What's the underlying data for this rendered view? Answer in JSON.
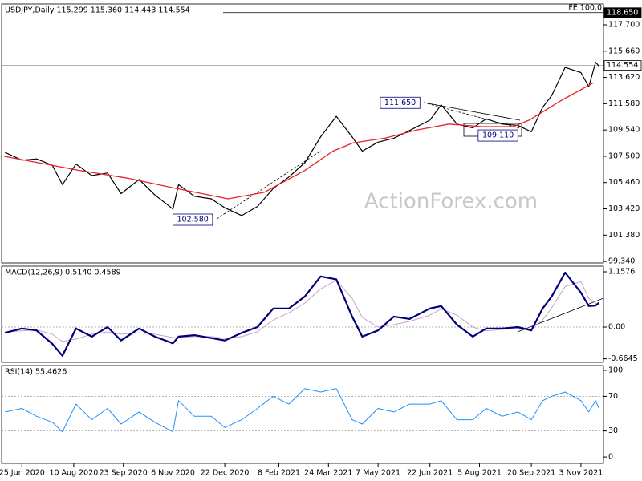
{
  "chart_data": [
    {
      "type": "line",
      "title": "USDJPY,Daily  115.299 115.360 114.443 114.554",
      "watermark": "ActionForex.com",
      "xlim": [
        "2020-06-07",
        "2021-11-23"
      ],
      "ylim": [
        99.22,
        119.32
      ],
      "yticks": [
        {
          "value": 99.34,
          "label": "99.340"
        },
        {
          "value": 101.38,
          "label": "101.380"
        },
        {
          "value": 103.42,
          "label": "103.420"
        },
        {
          "value": 105.46,
          "label": "105.460"
        },
        {
          "value": 107.5,
          "label": "107.500"
        },
        {
          "value": 109.54,
          "label": "109.540"
        },
        {
          "value": 111.58,
          "label": "111.580"
        },
        {
          "value": 113.62,
          "label": "113.620"
        },
        {
          "value": 115.66,
          "label": "115.660"
        },
        {
          "value": 117.7,
          "label": "117.700"
        }
      ],
      "x": [
        "2020-06-10",
        "2020-06-25",
        "2020-07-08",
        "2020-07-22",
        "2020-07-31",
        "2020-08-12",
        "2020-08-26",
        "2020-09-09",
        "2020-09-21",
        "2020-10-07",
        "2020-10-21",
        "2020-11-06",
        "2020-11-11",
        "2020-11-25",
        "2020-12-10",
        "2020-12-22",
        "2021-01-06",
        "2021-01-20",
        "2021-02-03",
        "2021-02-17",
        "2021-03-03",
        "2021-03-17",
        "2021-03-31",
        "2021-04-14",
        "2021-04-23",
        "2021-05-07",
        "2021-05-21",
        "2021-06-04",
        "2021-06-22",
        "2021-07-02",
        "2021-07-16",
        "2021-07-30",
        "2021-08-11",
        "2021-08-25",
        "2021-09-08",
        "2021-09-20",
        "2021-09-30",
        "2021-10-08",
        "2021-10-20",
        "2021-11-03",
        "2021-11-10",
        "2021-11-16",
        "2021-11-19"
      ],
      "series": [
        {
          "color": "#000000",
          "width": 1.2,
          "values": [
            107.8,
            107.2,
            107.3,
            106.8,
            105.3,
            106.9,
            106.0,
            106.2,
            104.6,
            105.7,
            104.5,
            103.4,
            105.3,
            104.4,
            104.2,
            103.5,
            102.9,
            103.6,
            105.0,
            105.9,
            107.0,
            109.0,
            110.6,
            109.0,
            107.9,
            108.6,
            108.9,
            109.5,
            110.3,
            111.5,
            110.0,
            109.7,
            110.4,
            110.0,
            109.9,
            109.4,
            111.3,
            112.2,
            114.4,
            114.0,
            112.9,
            114.8,
            114.5
          ]
        },
        {
          "color": "#e8202a",
          "width": 1.3,
          "x": [
            "2020-06-09",
            "2020-08-15",
            "2020-09-27",
            "2020-11-09",
            "2020-12-25",
            "2021-01-26",
            "2021-03-03",
            "2021-03-28",
            "2021-04-15",
            "2021-05-13",
            "2021-06-11",
            "2021-07-09",
            "2021-08-07",
            "2021-09-04",
            "2021-09-18",
            "2021-10-17",
            "2021-11-14"
          ],
          "values": [
            107.5,
            106.4,
            105.8,
            105.0,
            104.2,
            104.7,
            106.4,
            107.9,
            108.55,
            108.9,
            109.55,
            110.0,
            109.8,
            109.8,
            110.3,
            111.85,
            113.2
          ]
        }
      ],
      "levels": [
        {
          "value": 118.65,
          "label": "118.650",
          "note": "FE 100.0"
        },
        {
          "value": 114.554,
          "label": "114.554"
        }
      ],
      "annotations": [
        {
          "value": 111.65,
          "label": "111.650",
          "x": "2021-06-16",
          "side": "left"
        },
        {
          "value": 109.11,
          "label": "109.110",
          "x": "2021-08-01",
          "side": "right"
        },
        {
          "value": 102.58,
          "label": "102.580",
          "x": "2020-12-14",
          "side": "left"
        }
      ]
    },
    {
      "type": "line",
      "title": "MACD(12,26,9) 0.5140 0.4589",
      "xlim": [
        "2020-06-07",
        "2021-11-23"
      ],
      "ylim": [
        -0.738,
        1.275
      ],
      "yticks": [
        1.1576,
        {
          "value": 0,
          "label": "0.00"
        },
        -0.6645
      ],
      "ref_lines": [
        0
      ],
      "x": [
        "2020-06-10",
        "2020-06-25",
        "2020-07-08",
        "2020-07-22",
        "2020-07-31",
        "2020-08-12",
        "2020-08-26",
        "2020-09-09",
        "2020-09-21",
        "2020-10-07",
        "2020-10-21",
        "2020-11-06",
        "2020-11-11",
        "2020-11-25",
        "2020-12-10",
        "2020-12-22",
        "2021-01-06",
        "2021-01-20",
        "2021-02-03",
        "2021-02-17",
        "2021-03-03",
        "2021-03-17",
        "2021-03-31",
        "2021-04-14",
        "2021-04-23",
        "2021-05-07",
        "2021-05-21",
        "2021-06-04",
        "2021-06-22",
        "2021-07-02",
        "2021-07-16",
        "2021-07-30",
        "2021-08-11",
        "2021-08-25",
        "2021-09-08",
        "2021-09-20",
        "2021-09-30",
        "2021-10-08",
        "2021-10-20",
        "2021-11-03",
        "2021-11-10",
        "2021-11-16",
        "2021-11-19"
      ],
      "series": [
        {
          "color": "#c9a0d0",
          "width": 1,
          "values": [
            -0.1,
            -0.08,
            -0.06,
            -0.15,
            -0.3,
            -0.25,
            -0.15,
            -0.1,
            -0.15,
            -0.12,
            -0.15,
            -0.22,
            -0.22,
            -0.2,
            -0.2,
            -0.24,
            -0.2,
            -0.1,
            0.15,
            0.3,
            0.5,
            0.8,
            0.98,
            0.6,
            0.2,
            0.0,
            0.05,
            0.12,
            0.25,
            0.38,
            0.25,
            0.0,
            -0.08,
            -0.05,
            -0.03,
            -0.04,
            0.15,
            0.4,
            0.85,
            0.95,
            0.6,
            0.5,
            0.46
          ]
        },
        {
          "color": "#00007a",
          "width": 2.2,
          "values": [
            -0.12,
            -0.03,
            -0.07,
            -0.35,
            -0.6,
            -0.03,
            -0.2,
            0,
            -0.28,
            -0.03,
            -0.2,
            -0.34,
            -0.2,
            -0.17,
            -0.23,
            -0.28,
            -0.12,
            0,
            0.39,
            0.39,
            0.64,
            1.06,
            1.0,
            0.22,
            -0.2,
            -0.07,
            0.22,
            0.17,
            0.39,
            0.44,
            0.05,
            -0.2,
            -0.03,
            -0.03,
            0,
            -0.07,
            0.39,
            0.64,
            1.14,
            0.72,
            0.44,
            0.45,
            0.51
          ]
        }
      ]
    },
    {
      "type": "line",
      "title": "RSI(14) 55.4626",
      "xlim": [
        "2020-06-07",
        "2021-11-23"
      ],
      "ylim": [
        -7.3,
        105.5
      ],
      "yticks": [
        100,
        70,
        30,
        0
      ],
      "ref_lines": [
        70,
        30
      ],
      "x": [
        "2020-06-10",
        "2020-06-25",
        "2020-07-08",
        "2020-07-22",
        "2020-07-31",
        "2020-08-12",
        "2020-08-26",
        "2020-09-09",
        "2020-09-21",
        "2020-10-07",
        "2020-10-21",
        "2020-11-06",
        "2020-11-11",
        "2020-11-25",
        "2020-12-10",
        "2020-12-22",
        "2021-01-06",
        "2021-01-20",
        "2021-02-03",
        "2021-02-17",
        "2021-03-03",
        "2021-03-17",
        "2021-03-31",
        "2021-04-14",
        "2021-04-23",
        "2021-05-07",
        "2021-05-21",
        "2021-06-04",
        "2021-06-22",
        "2021-07-02",
        "2021-07-16",
        "2021-07-30",
        "2021-08-11",
        "2021-08-25",
        "2021-09-08",
        "2021-09-20",
        "2021-09-30",
        "2021-10-08",
        "2021-10-20",
        "2021-11-03",
        "2021-11-10",
        "2021-11-16",
        "2021-11-19"
      ],
      "series": [
        {
          "color": "#1e90ff",
          "width": 1,
          "values": [
            52,
            56,
            47,
            40,
            29,
            61,
            43,
            56,
            38,
            52,
            40,
            29,
            65,
            47,
            47,
            34,
            43,
            56,
            70,
            61,
            79,
            75,
            79,
            43,
            38,
            56,
            52,
            61,
            61,
            65,
            43,
            43,
            56,
            47,
            52,
            43,
            65,
            70,
            75,
            65,
            52,
            65,
            56
          ]
        }
      ],
      "xticks": [
        {
          "value": "2020-06-25",
          "label": "25 Jun 2020"
        },
        {
          "value": "2020-08-10",
          "label": "10 Aug 2020"
        },
        {
          "value": "2020-09-23",
          "label": "23 Sep 2020"
        },
        {
          "value": "2020-11-06",
          "label": "6 Nov 2020"
        },
        {
          "value": "2020-12-22",
          "label": "22 Dec 2020"
        },
        {
          "value": "2021-02-08",
          "label": "8 Feb 2021"
        },
        {
          "value": "2021-03-24",
          "label": "24 Mar 2021"
        },
        {
          "value": "2021-05-07",
          "label": "7 May 2021"
        },
        {
          "value": "2021-06-22",
          "label": "22 Jun 2021"
        },
        {
          "value": "2021-08-05",
          "label": "5 Aug 2021"
        },
        {
          "value": "2021-09-20",
          "label": "20 Sep 2021"
        },
        {
          "value": "2021-11-03",
          "label": "3 Nov 2021"
        }
      ]
    }
  ]
}
